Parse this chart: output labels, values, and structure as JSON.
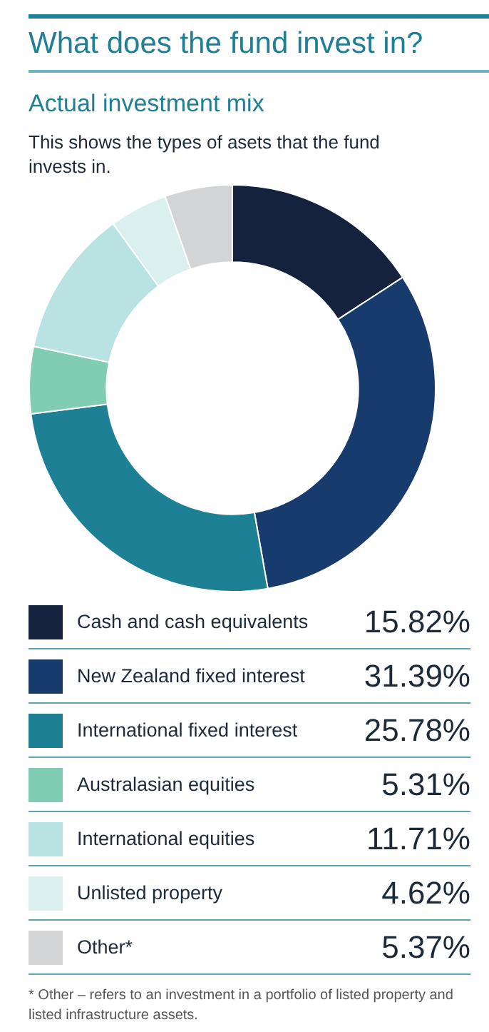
{
  "chart_data": {
    "type": "donut",
    "title": "What does the fund invest in?",
    "subtitle": "Actual investment mix",
    "categories": [
      "Cash and cash equivalents",
      "New Zealand fixed interest",
      "International fixed interest",
      "Australasian equities",
      "International equities",
      "Unlisted property",
      "Other*"
    ],
    "values": [
      15.82,
      31.39,
      25.78,
      5.31,
      11.71,
      4.62,
      5.37
    ],
    "colors": [
      "#15223d",
      "#173b6c",
      "#1e8094",
      "#80cdb3",
      "#b9e2e2",
      "#daf0ef",
      "#d3d4d6"
    ],
    "value_labels": [
      "15.82%",
      "31.39%",
      "25.78%",
      "5.31%",
      "11.71%",
      "4.62%",
      "5.37%"
    ],
    "legend": "bottom",
    "annotations": [
      "This shows the types of asets that the fund invests in.",
      "* Other – refers to an investment in a portfolio of listed property and listed infrastructure assets."
    ]
  }
}
